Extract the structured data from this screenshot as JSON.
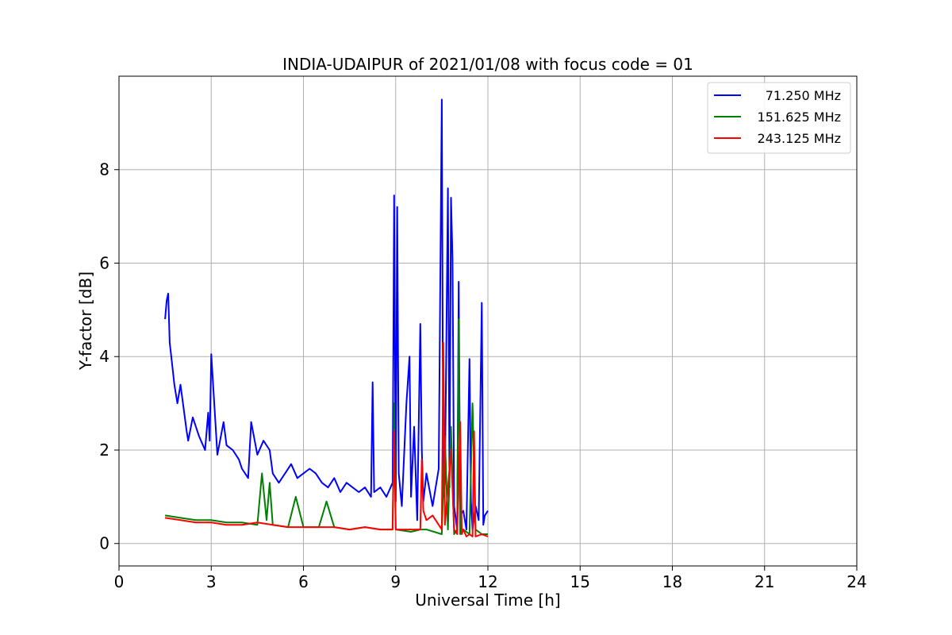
{
  "chart_data": {
    "type": "line",
    "title": "INDIA-UDAIPUR of 2021/01/08 with focus code = 01",
    "xlabel": "Universal Time [h]",
    "ylabel": "Y-factor [dB]",
    "xlim": [
      0,
      24
    ],
    "ylim": [
      -0.48,
      10.0
    ],
    "xticks": [
      "0",
      "3",
      "6",
      "9",
      "12",
      "15",
      "18",
      "21",
      "24"
    ],
    "yticks": [
      "0",
      "2",
      "4",
      "6",
      "8"
    ],
    "xtick_values": [
      0,
      3,
      6,
      9,
      12,
      15,
      18,
      21,
      24
    ],
    "ytick_values": [
      0,
      2,
      4,
      6,
      8
    ],
    "grid": true,
    "legend_position": "top-right",
    "series": [
      {
        "name": "71.250 MHz",
        "color": "#0000ff",
        "x": [
          1.5,
          1.55,
          1.6,
          1.65,
          1.7,
          1.8,
          1.9,
          2.0,
          2.2,
          2.25,
          2.4,
          2.6,
          2.8,
          2.9,
          2.95,
          3.0,
          3.2,
          3.4,
          3.5,
          3.7,
          3.9,
          4.0,
          4.2,
          4.3,
          4.5,
          4.7,
          4.9,
          5.0,
          5.2,
          5.4,
          5.6,
          5.8,
          6.0,
          6.2,
          6.4,
          6.6,
          6.8,
          7.0,
          7.2,
          7.4,
          7.6,
          7.8,
          8.0,
          8.2,
          8.25,
          8.3,
          8.5,
          8.7,
          8.9,
          8.95,
          9.0,
          9.05,
          9.1,
          9.2,
          9.35,
          9.45,
          9.5,
          9.6,
          9.7,
          9.8,
          9.85,
          9.9,
          10.0,
          10.2,
          10.4,
          10.5,
          10.55,
          10.6,
          10.7,
          10.75,
          10.8,
          10.85,
          10.9,
          11.0,
          11.05,
          11.1,
          11.2,
          11.3,
          11.4,
          11.45,
          11.5,
          11.6,
          11.7,
          11.8,
          11.85,
          11.9,
          12.0
        ],
        "y": [
          4.8,
          5.2,
          5.35,
          4.3,
          4.0,
          3.4,
          3.0,
          3.4,
          2.4,
          2.2,
          2.7,
          2.3,
          2.0,
          2.8,
          2.2,
          4.05,
          1.9,
          2.6,
          2.1,
          2.0,
          1.8,
          1.6,
          1.4,
          2.6,
          1.9,
          2.2,
          2.0,
          1.5,
          1.3,
          1.5,
          1.7,
          1.4,
          1.5,
          1.6,
          1.5,
          1.3,
          1.2,
          1.4,
          1.1,
          1.3,
          1.2,
          1.1,
          1.2,
          1.0,
          3.45,
          1.1,
          1.2,
          1.0,
          1.3,
          7.45,
          0.9,
          7.2,
          1.5,
          0.8,
          3.0,
          4.0,
          1.0,
          2.5,
          0.5,
          4.7,
          2.0,
          0.9,
          1.5,
          0.8,
          1.6,
          9.5,
          1.0,
          1.3,
          7.6,
          1.2,
          7.4,
          6.1,
          0.8,
          0.3,
          5.6,
          0.6,
          0.7,
          0.3,
          3.95,
          0.9,
          0.3,
          0.8,
          0.5,
          5.15,
          0.4,
          0.6,
          0.7
        ]
      },
      {
        "name": "151.625 MHz",
        "color": "#008000",
        "x": [
          1.5,
          2.0,
          2.5,
          3.0,
          3.5,
          4.0,
          4.5,
          4.65,
          4.8,
          4.9,
          5.0,
          5.5,
          5.75,
          6.0,
          6.5,
          6.75,
          7.0,
          7.5,
          8.0,
          8.5,
          8.9,
          8.95,
          9.0,
          9.5,
          9.8,
          10.0,
          10.5,
          10.6,
          10.7,
          10.8,
          10.9,
          11.0,
          11.05,
          11.1,
          11.2,
          11.4,
          11.5,
          11.6,
          11.8,
          12.0
        ],
        "y": [
          0.6,
          0.55,
          0.5,
          0.5,
          0.45,
          0.45,
          0.4,
          1.5,
          0.5,
          1.3,
          0.4,
          0.35,
          1.0,
          0.35,
          0.35,
          0.9,
          0.35,
          0.3,
          0.35,
          0.3,
          0.3,
          3.0,
          0.3,
          0.25,
          0.3,
          0.3,
          0.2,
          2.3,
          0.3,
          2.5,
          0.2,
          0.3,
          4.8,
          0.2,
          0.3,
          0.2,
          3.0,
          0.3,
          0.2,
          0.2
        ]
      },
      {
        "name": "243.125 MHz",
        "color": "#ff0000",
        "x": [
          1.5,
          2.0,
          2.5,
          3.0,
          3.5,
          4.0,
          4.5,
          5.0,
          5.5,
          6.0,
          6.5,
          7.0,
          7.5,
          8.0,
          8.5,
          8.9,
          8.95,
          9.0,
          9.5,
          9.8,
          9.85,
          9.9,
          10.0,
          10.2,
          10.4,
          10.5,
          10.55,
          10.6,
          10.8,
          10.9,
          11.0,
          11.1,
          11.15,
          11.2,
          11.3,
          11.4,
          11.5,
          11.55,
          11.6,
          11.8,
          12.0
        ],
        "y": [
          0.55,
          0.5,
          0.45,
          0.45,
          0.4,
          0.4,
          0.45,
          0.4,
          0.35,
          0.35,
          0.35,
          0.35,
          0.3,
          0.35,
          0.3,
          0.3,
          2.4,
          0.3,
          0.3,
          0.3,
          1.8,
          0.7,
          0.5,
          0.6,
          0.4,
          0.3,
          4.3,
          0.4,
          2.0,
          0.3,
          0.2,
          2.6,
          0.2,
          0.3,
          0.15,
          0.2,
          0.15,
          2.4,
          0.15,
          0.2,
          0.15
        ]
      }
    ]
  }
}
